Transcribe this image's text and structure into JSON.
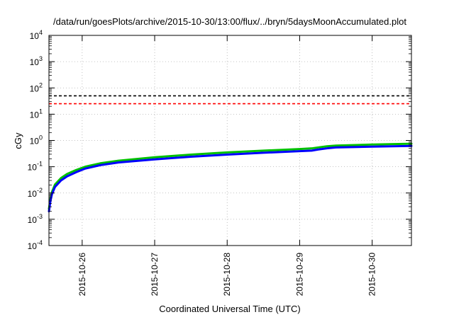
{
  "chart_data": {
    "type": "line",
    "title": "/data/run/goesPlots/archive/2015-10-30/13:00/flux/../bryn/5daysMoonAccumulated.plot",
    "xlabel": "Coordinated Universal Time (UTC)",
    "ylabel": "cGy",
    "yscale": "log",
    "ylim": [
      0.0001,
      10000
    ],
    "xlim": [
      "2015-10-25 13:00",
      "2015-10-30 13:00"
    ],
    "y_ticks": [
      {
        "value": 0.0001,
        "base": "10",
        "exp": "-4"
      },
      {
        "value": 0.001,
        "base": "10",
        "exp": "-3"
      },
      {
        "value": 0.01,
        "base": "10",
        "exp": "-2"
      },
      {
        "value": 0.1,
        "base": "10",
        "exp": "-1"
      },
      {
        "value": 1,
        "base": "10",
        "exp": "0"
      },
      {
        "value": 10,
        "base": "10",
        "exp": "1"
      },
      {
        "value": 100,
        "base": "10",
        "exp": "2"
      },
      {
        "value": 1000,
        "base": "10",
        "exp": "3"
      },
      {
        "value": 10000,
        "base": "10",
        "exp": "4"
      }
    ],
    "x_ticks": [
      {
        "value": "2015-10-26 00:00",
        "label": "2015-10-26"
      },
      {
        "value": "2015-10-27 00:00",
        "label": "2015-10-27"
      },
      {
        "value": "2015-10-28 00:00",
        "label": "2015-10-28"
      },
      {
        "value": "2015-10-29 00:00",
        "label": "2015-10-29"
      },
      {
        "value": "2015-10-30 00:00",
        "label": "2015-10-30"
      }
    ],
    "grid": true,
    "reference_lines": [
      {
        "y": 50,
        "color": "#000000",
        "style": "dashed"
      },
      {
        "y": 25,
        "color": "#ff0000",
        "style": "dashed"
      }
    ],
    "series": [
      {
        "color": "#00c000",
        "x": [
          "2015-10-25 13:00",
          "2015-10-25 13:30",
          "2015-10-25 14:00",
          "2015-10-25 15:00",
          "2015-10-25 17:00",
          "2015-10-25 19:00",
          "2015-10-25 22:00",
          "2015-10-26 01:00",
          "2015-10-26 06:00",
          "2015-10-26 12:00",
          "2015-10-27 00:00",
          "2015-10-27 12:00",
          "2015-10-28 00:00",
          "2015-10-28 12:00",
          "2015-10-29 00:00",
          "2015-10-29 04:00",
          "2015-10-29 06:00",
          "2015-10-29 09:00",
          "2015-10-29 12:00",
          "2015-10-30 00:00",
          "2015-10-30 13:00"
        ],
        "y": [
          0.0025,
          0.006,
          0.011,
          0.021,
          0.037,
          0.053,
          0.075,
          0.1,
          0.135,
          0.17,
          0.23,
          0.29,
          0.35,
          0.41,
          0.47,
          0.5,
          0.54,
          0.6,
          0.64,
          0.7,
          0.75
        ]
      },
      {
        "color": "#0000ff",
        "x": [
          "2015-10-25 13:00",
          "2015-10-25 13:30",
          "2015-10-25 14:00",
          "2015-10-25 15:00",
          "2015-10-25 17:00",
          "2015-10-25 19:00",
          "2015-10-25 22:00",
          "2015-10-26 01:00",
          "2015-10-26 06:00",
          "2015-10-26 12:00",
          "2015-10-27 00:00",
          "2015-10-27 12:00",
          "2015-10-28 00:00",
          "2015-10-28 12:00",
          "2015-10-29 00:00",
          "2015-10-29 04:00",
          "2015-10-29 06:00",
          "2015-10-29 09:00",
          "2015-10-29 12:00",
          "2015-10-30 00:00",
          "2015-10-30 13:00"
        ],
        "y": [
          0.002,
          0.005,
          0.009,
          0.017,
          0.03,
          0.043,
          0.062,
          0.085,
          0.115,
          0.145,
          0.19,
          0.24,
          0.29,
          0.34,
          0.39,
          0.41,
          0.45,
          0.5,
          0.54,
          0.58,
          0.62
        ]
      }
    ]
  }
}
